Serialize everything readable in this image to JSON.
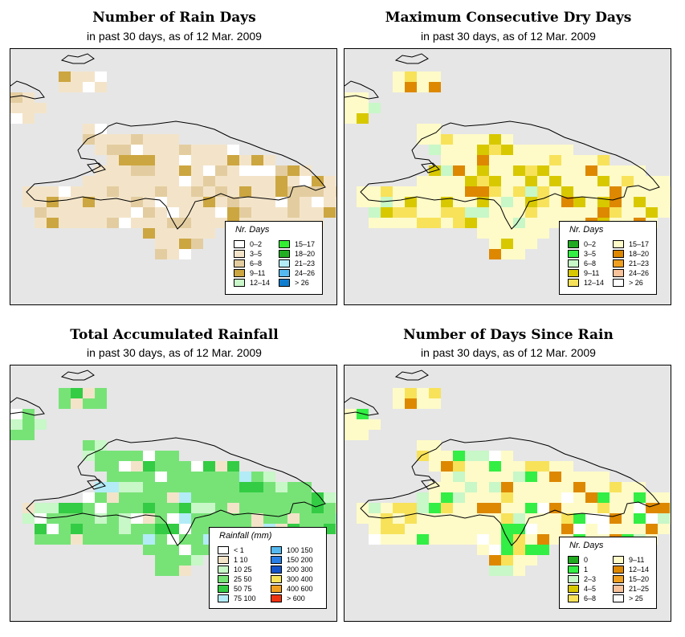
{
  "panels": [
    {
      "title": "Number of Rain Days",
      "subtitle": "in past 30 days, as of  12 Mar. 2009",
      "legend": {
        "title": "Nr. Days",
        "items": [
          {
            "label": "0–2",
            "color": "#ffffff"
          },
          {
            "label": "3–5",
            "color": "#f3e4c9"
          },
          {
            "label": "6–8",
            "color": "#e3cda0"
          },
          {
            "label": "9–11",
            "color": "#cca641"
          },
          {
            "label": "12–14",
            "color": "#c9f7c9"
          },
          {
            "label": "15–17",
            "color": "#33ee33"
          },
          {
            "label": "18–20",
            "color": "#22b022"
          },
          {
            "label": "21–23",
            "color": "#b3ecf7"
          },
          {
            "label": "24–26",
            "color": "#55b8ef"
          },
          {
            "label": "> 26",
            "color": "#0f7ed1"
          }
        ]
      }
    },
    {
      "title": "Maximum Consecutive Dry Days",
      "subtitle": "in past 30 days, as of  12 Mar. 2009",
      "legend": {
        "title": "Nr. Days",
        "items": [
          {
            "label": "0–2",
            "color": "#22aa22"
          },
          {
            "label": "3–5",
            "color": "#33ee44"
          },
          {
            "label": "6–8",
            "color": "#c8f7c8"
          },
          {
            "label": "9–11",
            "color": "#d8c800"
          },
          {
            "label": "12–14",
            "color": "#f7e25a"
          },
          {
            "label": "15–17",
            "color": "#fefbc8"
          },
          {
            "label": "18–20",
            "color": "#dd8800"
          },
          {
            "label": "21–23",
            "color": "#f0a020"
          },
          {
            "label": "24–26",
            "color": "#f8c29a"
          },
          {
            "label": "> 26",
            "color": "#ffffff"
          }
        ]
      }
    },
    {
      "title": "Total Accumulated Rainfall",
      "subtitle": "in past 30 days, as of  12 Mar. 2009",
      "legend": {
        "title": "Rainfall (mm)",
        "items": [
          {
            "label": "< 1",
            "color": "#ffffff"
          },
          {
            "label": "1      10",
            "color": "#f3e4c9"
          },
          {
            "label": "10      25",
            "color": "#c8f7c8"
          },
          {
            "label": "25      50",
            "color": "#77e377"
          },
          {
            "label": "50      75",
            "color": "#33cc44"
          },
          {
            "label": "75    100",
            "color": "#b3ecf7"
          },
          {
            "label": "100    150",
            "color": "#55b8ef"
          },
          {
            "label": "150    200",
            "color": "#2a7fe6"
          },
          {
            "label": "200    300",
            "color": "#1555cc"
          },
          {
            "label": "300    400",
            "color": "#f7e25a"
          },
          {
            "label": "400    600",
            "color": "#f0a020"
          },
          {
            "label": "> 600",
            "color": "#ee3311"
          }
        ]
      }
    },
    {
      "title": "Number of Days Since Rain",
      "subtitle": "in past 30 days, as of  12 Mar. 2009",
      "legend": {
        "title": "Nr. Days",
        "items": [
          {
            "label": "0",
            "color": "#22aa22"
          },
          {
            "label": "1",
            "color": "#33ee44"
          },
          {
            "label": "2–3",
            "color": "#c8f7c8"
          },
          {
            "label": "4–5",
            "color": "#d8c800"
          },
          {
            "label": "6–8",
            "color": "#f7e25a"
          },
          {
            "label": "9–11",
            "color": "#fefbc8"
          },
          {
            "label": "12–14",
            "color": "#dd8800"
          },
          {
            "label": "15–20",
            "color": "#f0a020"
          },
          {
            "label": "21–25",
            "color": "#f8c29a"
          },
          {
            "label": "> 25",
            "color": "#ffffff"
          }
        ]
      }
    }
  ],
  "colors": {
    "map_background": "#e6e6e6",
    "coastline": "#000000"
  }
}
